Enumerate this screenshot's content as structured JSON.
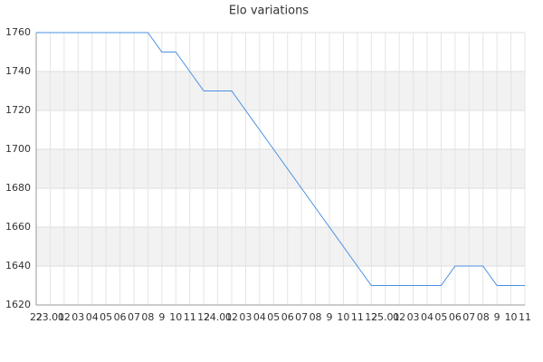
{
  "chart_data": {
    "type": "line",
    "title": "Elo variations",
    "categories": [
      "22",
      "23.01",
      "02",
      "03",
      "04",
      "05",
      "06",
      "07",
      "08",
      "9",
      "10",
      "11",
      "12",
      "24.01",
      "02",
      "03",
      "04",
      "05",
      "06",
      "07",
      "08",
      "9",
      "10",
      "11",
      "12",
      "25.01",
      "02",
      "03",
      "04",
      "05",
      "06",
      "07",
      "08",
      "9",
      "10",
      "11"
    ],
    "series": [
      {
        "name": "Elo",
        "color": "#4a90e2",
        "values": [
          1760,
          1760,
          1760,
          1760,
          1760,
          1760,
          1760,
          1760,
          1760,
          1750,
          1750,
          1740,
          1730,
          1730,
          1730,
          1720,
          1710,
          1700,
          1690,
          1680,
          1670,
          1660,
          1650,
          1640,
          1630,
          1630,
          1630,
          1630,
          1630,
          1630,
          1640,
          1640,
          1640,
          1630,
          1630,
          1630
        ]
      }
    ],
    "ylim": [
      1620,
      1760
    ],
    "yticks": [
      1620,
      1640,
      1660,
      1680,
      1700,
      1720,
      1740,
      1760
    ],
    "grid": true
  }
}
